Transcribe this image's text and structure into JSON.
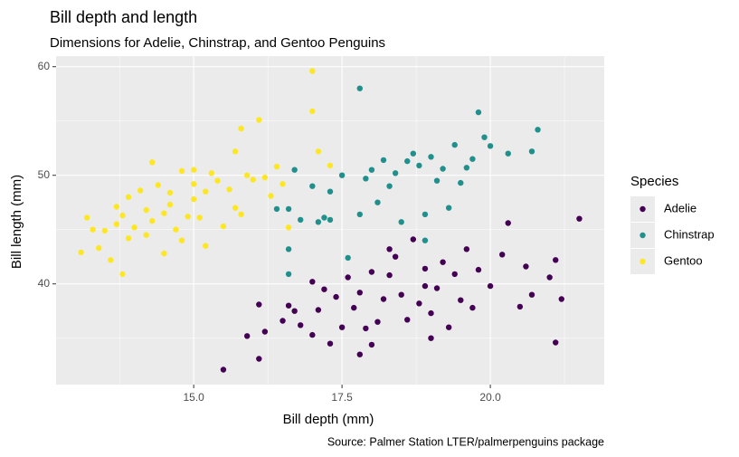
{
  "chart_data": {
    "type": "scatter",
    "title": "Bill depth and length",
    "subtitle": "Dimensions for Adelie, Chinstrap, and Gentoo Penguins",
    "x_label": "Bill depth (mm)",
    "y_label": "Bill length (mm)",
    "caption": "Source: Palmer Station LTER/palmerpenguins package",
    "legend_title": "Species",
    "legend_position": "right",
    "grid": true,
    "xlim": [
      12.68,
      21.92
    ],
    "ylim": [
      30.725,
      60.975
    ],
    "xticks": [
      {
        "value": 15,
        "label": "15.0"
      },
      17.5,
      {
        "value": 20,
        "label": "20.0"
      }
    ],
    "yticks": [
      40,
      50,
      60
    ],
    "series": [
      {
        "name": "Adelie",
        "color": "#440154",
        "x": [
          15.5,
          15.9,
          16.1,
          16.1,
          16.2,
          16.5,
          16.6,
          16.7,
          16.8,
          17.0,
          17.0,
          17.1,
          17.2,
          17.3,
          17.4,
          17.5,
          17.6,
          17.7,
          17.8,
          17.9,
          18.0,
          18.1,
          18.2,
          18.3,
          18.4,
          18.5,
          18.6,
          18.7,
          18.8,
          18.9,
          19.0,
          19.1,
          19.2,
          19.3,
          19.4,
          19.5,
          19.6,
          19.7,
          19.8,
          20.0,
          20.2,
          20.3,
          20.5,
          20.6,
          20.7,
          21.0,
          21.1,
          21.1,
          21.2,
          21.5,
          18.0,
          18.3,
          19.0,
          17.8,
          18.9
        ],
        "values": [
          32.1,
          35.2,
          33.1,
          38.1,
          35.6,
          36.6,
          38.0,
          37.5,
          36.2,
          35.3,
          40.2,
          37.6,
          39.5,
          34.5,
          38.8,
          36.0,
          40.6,
          37.8,
          39.2,
          35.9,
          41.1,
          36.5,
          38.6,
          40.8,
          42.5,
          39.0,
          36.7,
          44.1,
          38.2,
          41.4,
          37.3,
          39.6,
          42.0,
          36.0,
          40.9,
          38.5,
          43.2,
          37.8,
          41.3,
          39.8,
          42.7,
          45.6,
          37.9,
          41.6,
          39.0,
          40.6,
          42.2,
          34.6,
          38.6,
          46.0,
          34.4,
          43.2,
          35.0,
          33.5,
          39.8
        ]
      },
      {
        "name": "Chinstrap",
        "color": "#21908C",
        "x": [
          16.4,
          16.6,
          16.6,
          16.7,
          16.8,
          17.0,
          17.1,
          17.2,
          17.3,
          17.3,
          17.5,
          17.6,
          17.8,
          17.8,
          17.9,
          18.0,
          18.1,
          18.2,
          18.3,
          18.4,
          18.5,
          18.6,
          18.7,
          18.8,
          18.9,
          19.0,
          19.1,
          19.2,
          19.3,
          19.4,
          19.5,
          19.6,
          19.7,
          19.8,
          19.9,
          20.0,
          20.3,
          20.7,
          20.8,
          16.6,
          18.9
        ],
        "values": [
          46.9,
          46.9,
          43.2,
          50.5,
          45.9,
          49.0,
          45.7,
          46.1,
          48.5,
          45.9,
          50.0,
          42.4,
          58.0,
          46.4,
          49.7,
          50.5,
          47.5,
          51.4,
          49.0,
          50.2,
          45.7,
          51.3,
          52.0,
          50.9,
          46.4,
          51.7,
          49.5,
          50.6,
          47.0,
          52.8,
          49.3,
          50.7,
          51.5,
          55.8,
          53.5,
          52.7,
          52.0,
          52.2,
          54.2,
          40.9,
          44.0
        ]
      },
      {
        "name": "Gentoo",
        "color": "#FDE725",
        "x": [
          13.1,
          13.2,
          13.3,
          13.4,
          13.5,
          13.6,
          13.7,
          13.7,
          13.8,
          13.8,
          13.9,
          13.9,
          14.0,
          14.1,
          14.2,
          14.2,
          14.3,
          14.3,
          14.4,
          14.5,
          14.5,
          14.6,
          14.6,
          14.7,
          14.8,
          14.8,
          14.9,
          15.0,
          15.0,
          15.0,
          15.1,
          15.2,
          15.2,
          15.3,
          15.4,
          15.5,
          15.6,
          15.7,
          15.7,
          15.8,
          15.8,
          15.9,
          16.0,
          16.1,
          16.2,
          16.3,
          16.4,
          16.5,
          16.6,
          17.0,
          17.0,
          17.1,
          17.3
        ],
        "values": [
          42.9,
          46.1,
          45.0,
          43.3,
          44.9,
          42.2,
          45.5,
          47.1,
          40.9,
          46.3,
          44.2,
          48.0,
          45.2,
          48.6,
          44.5,
          46.8,
          51.2,
          45.8,
          49.1,
          46.5,
          42.8,
          48.4,
          47.3,
          45.0,
          50.4,
          44.0,
          46.2,
          49.2,
          50.5,
          47.8,
          46.1,
          48.5,
          43.5,
          50.2,
          49.5,
          45.3,
          48.7,
          52.2,
          47.0,
          46.4,
          54.3,
          50.0,
          49.6,
          55.1,
          49.8,
          48.1,
          50.8,
          49.2,
          45.2,
          59.6,
          55.9,
          52.2,
          50.9
        ]
      }
    ]
  }
}
